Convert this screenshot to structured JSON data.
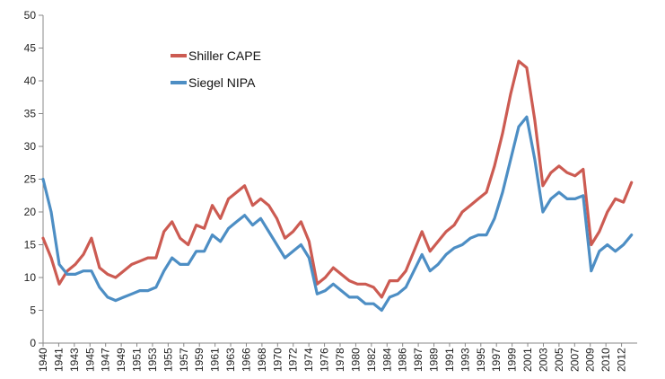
{
  "chart_data": {
    "type": "line",
    "title": "",
    "xlabel": "",
    "ylabel": "",
    "ylim": [
      0,
      50
    ],
    "y_ticks": [
      0,
      5,
      10,
      15,
      20,
      25,
      30,
      35,
      40,
      45,
      50
    ],
    "x_ticks": [
      "1940",
      "1941",
      "1943",
      "1945",
      "1947",
      "1949",
      "1951",
      "1953",
      "1955",
      "1957",
      "1959",
      "1961",
      "1963",
      "1966",
      "1968",
      "1970",
      "1972",
      "1974",
      "1976",
      "1978",
      "1980",
      "1982",
      "1984",
      "1986",
      "1987",
      "1989",
      "1991",
      "1993",
      "1995",
      "1997",
      "1999",
      "2001",
      "2003",
      "2005",
      "2007",
      "2009",
      "2010",
      "2012"
    ],
    "grid": false,
    "legend_position": "top-left",
    "series": [
      {
        "name": "Shiller CAPE",
        "color": "#cc5b52",
        "x": [
          1940,
          1941,
          1942,
          1943,
          1944,
          1945,
          1946,
          1947,
          1948,
          1949,
          1950,
          1951,
          1952,
          1953,
          1954,
          1955,
          1956,
          1957,
          1958,
          1959,
          1960,
          1961,
          1962,
          1963,
          1964,
          1965,
          1966,
          1967,
          1968,
          1969,
          1970,
          1971,
          1972,
          1973,
          1974,
          1975,
          1976,
          1977,
          1978,
          1979,
          1980,
          1981,
          1982,
          1983,
          1984,
          1985,
          1986,
          1987,
          1988,
          1989,
          1990,
          1991,
          1992,
          1993,
          1994,
          1995,
          1996,
          1997,
          1998,
          1999,
          2000,
          2001,
          2002,
          2003,
          2004,
          2005,
          2006,
          2007,
          2008,
          2009,
          2010,
          2011,
          2012,
          2013
        ],
        "values": [
          16.0,
          13.0,
          9.0,
          11.0,
          12.0,
          13.5,
          16.0,
          11.5,
          10.5,
          10.0,
          11.0,
          12.0,
          12.5,
          13.0,
          13.0,
          17.0,
          18.5,
          16.0,
          15.0,
          18.0,
          17.5,
          21.0,
          19.0,
          22.0,
          23.0,
          24.0,
          21.0,
          22.0,
          21.0,
          19.0,
          16.0,
          17.0,
          18.5,
          15.5,
          9.0,
          10.0,
          11.5,
          10.5,
          9.5,
          9.0,
          9.0,
          8.5,
          7.0,
          9.5,
          9.5,
          11.0,
          14.0,
          17.0,
          14.0,
          15.5,
          17.0,
          18.0,
          20.0,
          21.0,
          22.0,
          23.0,
          27.0,
          32.0,
          38.0,
          43.0,
          42.0,
          34.0,
          24.0,
          26.0,
          27.0,
          26.0,
          25.5,
          26.5,
          15.0,
          17.0,
          20.0,
          22.0,
          21.5,
          24.5
        ]
      },
      {
        "name": "Siegel NIPA",
        "color": "#4d8ec4",
        "x": [
          1940,
          1941,
          1942,
          1943,
          1944,
          1945,
          1946,
          1947,
          1948,
          1949,
          1950,
          1951,
          1952,
          1953,
          1954,
          1955,
          1956,
          1957,
          1958,
          1959,
          1960,
          1961,
          1962,
          1963,
          1964,
          1965,
          1966,
          1967,
          1968,
          1969,
          1970,
          1971,
          1972,
          1973,
          1974,
          1975,
          1976,
          1977,
          1978,
          1979,
          1980,
          1981,
          1982,
          1983,
          1984,
          1985,
          1986,
          1987,
          1988,
          1989,
          1990,
          1991,
          1992,
          1993,
          1994,
          1995,
          1996,
          1997,
          1998,
          1999,
          2000,
          2001,
          2002,
          2003,
          2004,
          2005,
          2006,
          2007,
          2008,
          2009,
          2010,
          2011,
          2012,
          2013
        ],
        "values": [
          25.0,
          20.0,
          12.0,
          10.5,
          10.5,
          11.0,
          11.0,
          8.5,
          7.0,
          6.5,
          7.0,
          7.5,
          8.0,
          8.0,
          8.5,
          11.0,
          13.0,
          12.0,
          12.0,
          14.0,
          14.0,
          16.5,
          15.5,
          17.5,
          18.5,
          19.5,
          18.0,
          19.0,
          17.0,
          15.0,
          13.0,
          14.0,
          15.0,
          13.0,
          7.5,
          8.0,
          9.0,
          8.0,
          7.0,
          7.0,
          6.0,
          6.0,
          5.0,
          7.0,
          7.5,
          8.5,
          11.0,
          13.5,
          11.0,
          12.0,
          13.5,
          14.5,
          15.0,
          16.0,
          16.5,
          16.5,
          19.0,
          23.0,
          28.0,
          33.0,
          34.5,
          28.0,
          20.0,
          22.0,
          23.0,
          22.0,
          22.0,
          22.5,
          11.0,
          14.0,
          15.0,
          14.0,
          15.0,
          16.5
        ]
      }
    ]
  }
}
